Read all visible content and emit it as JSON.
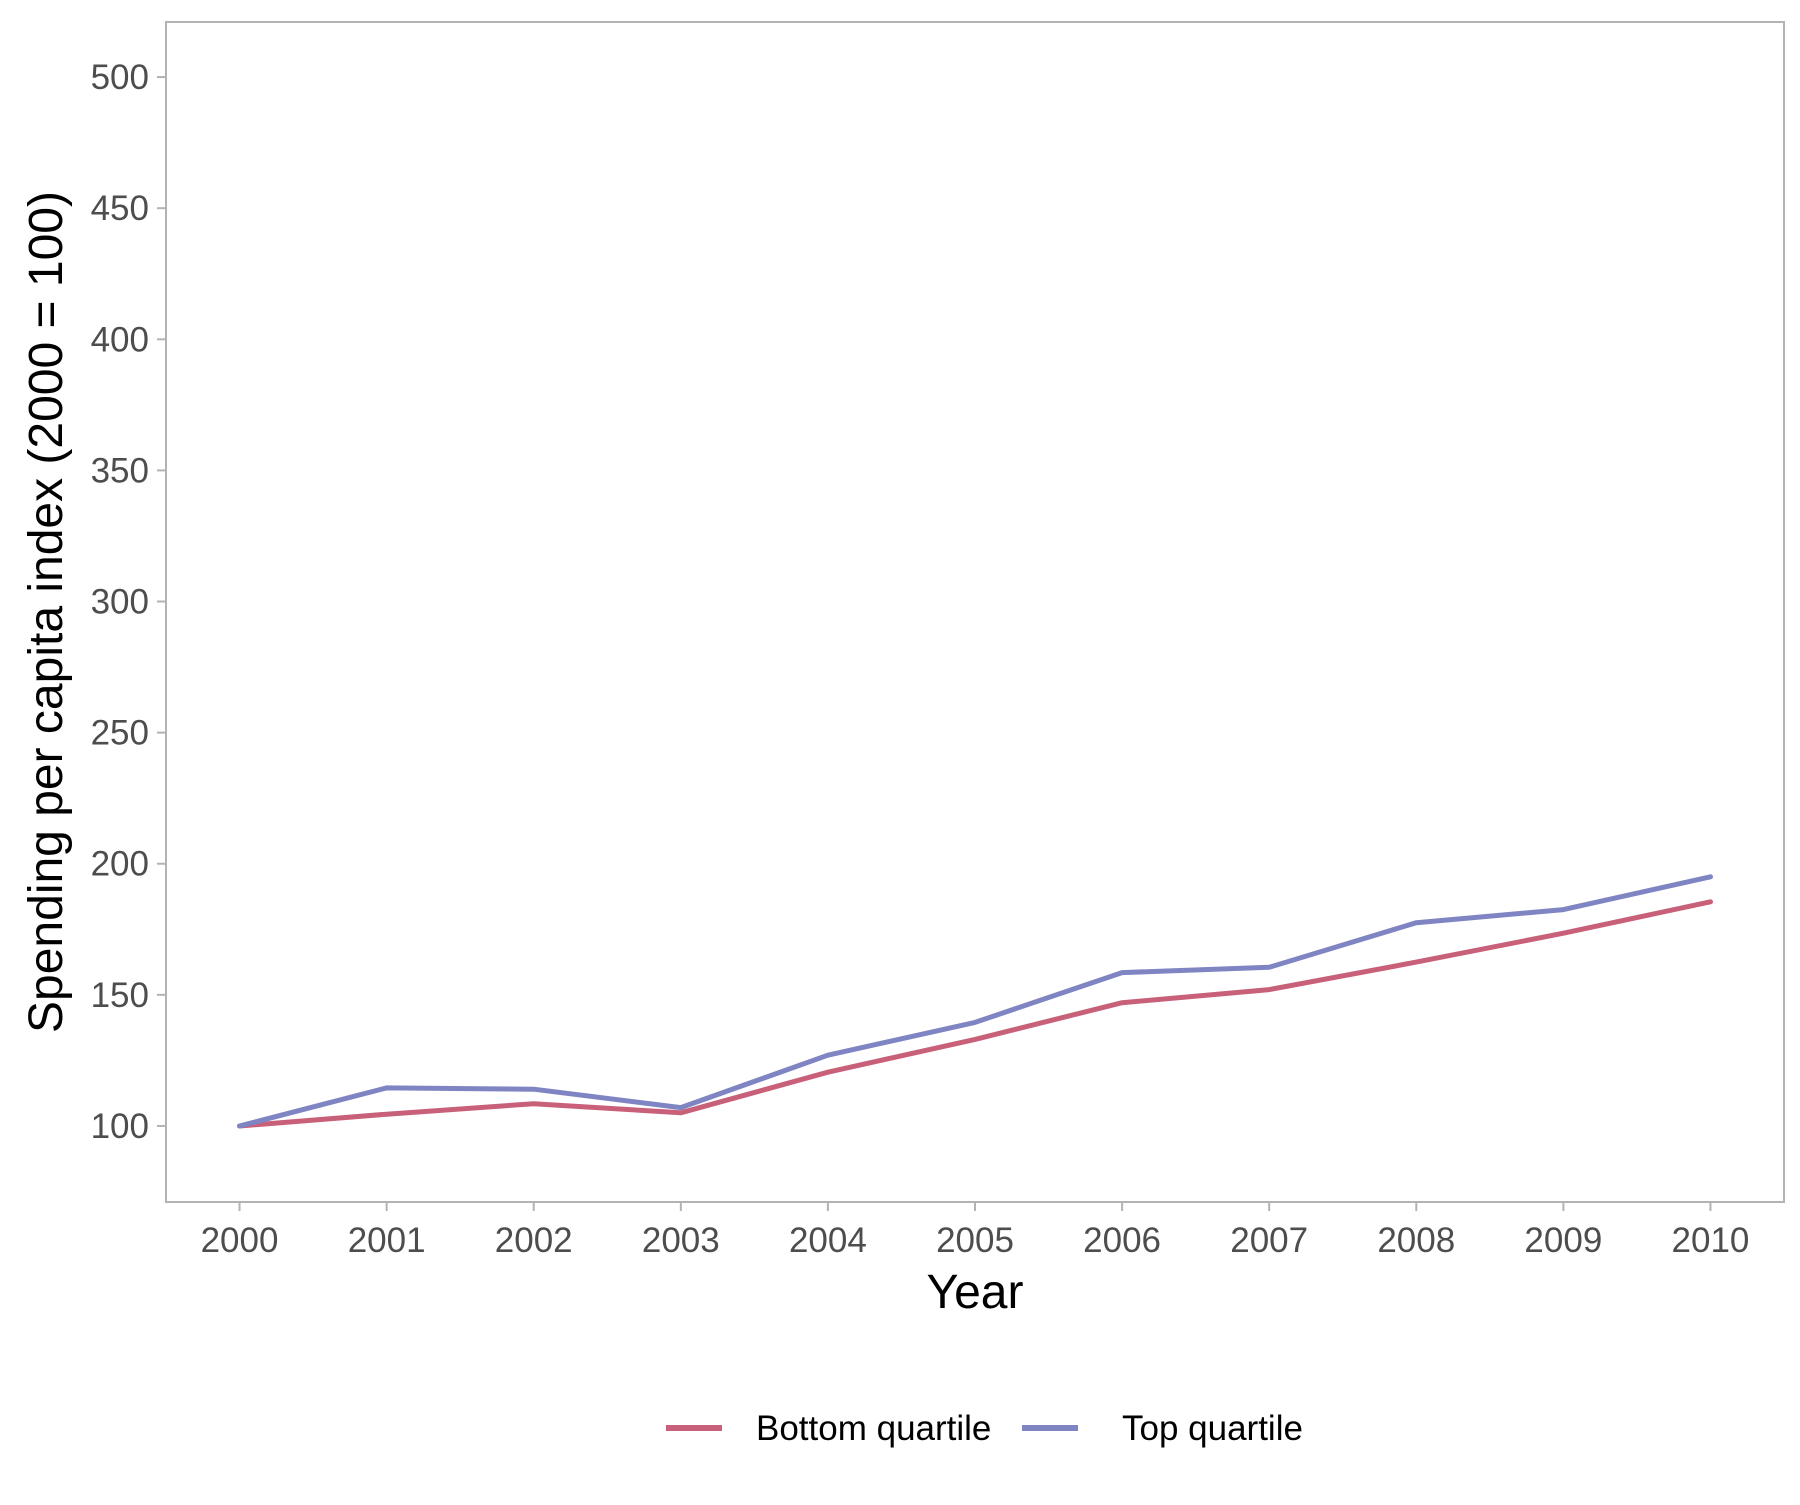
{
  "chart_data": {
    "type": "line",
    "title": "",
    "xlabel": "Year",
    "ylabel": "Spending per capita index (2000 = 100)",
    "x": [
      2000,
      2001,
      2002,
      2003,
      2004,
      2005,
      2006,
      2007,
      2008,
      2009,
      2010
    ],
    "x_tick_labels": [
      "2000",
      "2001",
      "2002",
      "2003",
      "2004",
      "2005",
      "2006",
      "2007",
      "2008",
      "2009",
      "2010"
    ],
    "y_ticks": [
      100,
      150,
      200,
      250,
      300,
      350,
      400,
      450,
      500
    ],
    "y_tick_labels": [
      "100",
      "150",
      "200",
      "250",
      "300",
      "350",
      "400",
      "450",
      "500"
    ],
    "xlim": [
      1999.5,
      2010.5
    ],
    "ylim": [
      71,
      521
    ],
    "grid": false,
    "legend_position": "bottom",
    "series": [
      {
        "name": "Bottom quartile",
        "color": "#c8607a",
        "values": [
          100,
          104.5,
          108.5,
          105,
          120.5,
          133,
          147,
          152,
          162.5,
          173.5,
          185.5
        ]
      },
      {
        "name": "Top quartile",
        "color": "#7f85c2",
        "values": [
          100,
          114.5,
          114,
          107,
          127,
          139.5,
          158.5,
          160.5,
          177.5,
          182.5,
          195
        ]
      }
    ]
  }
}
